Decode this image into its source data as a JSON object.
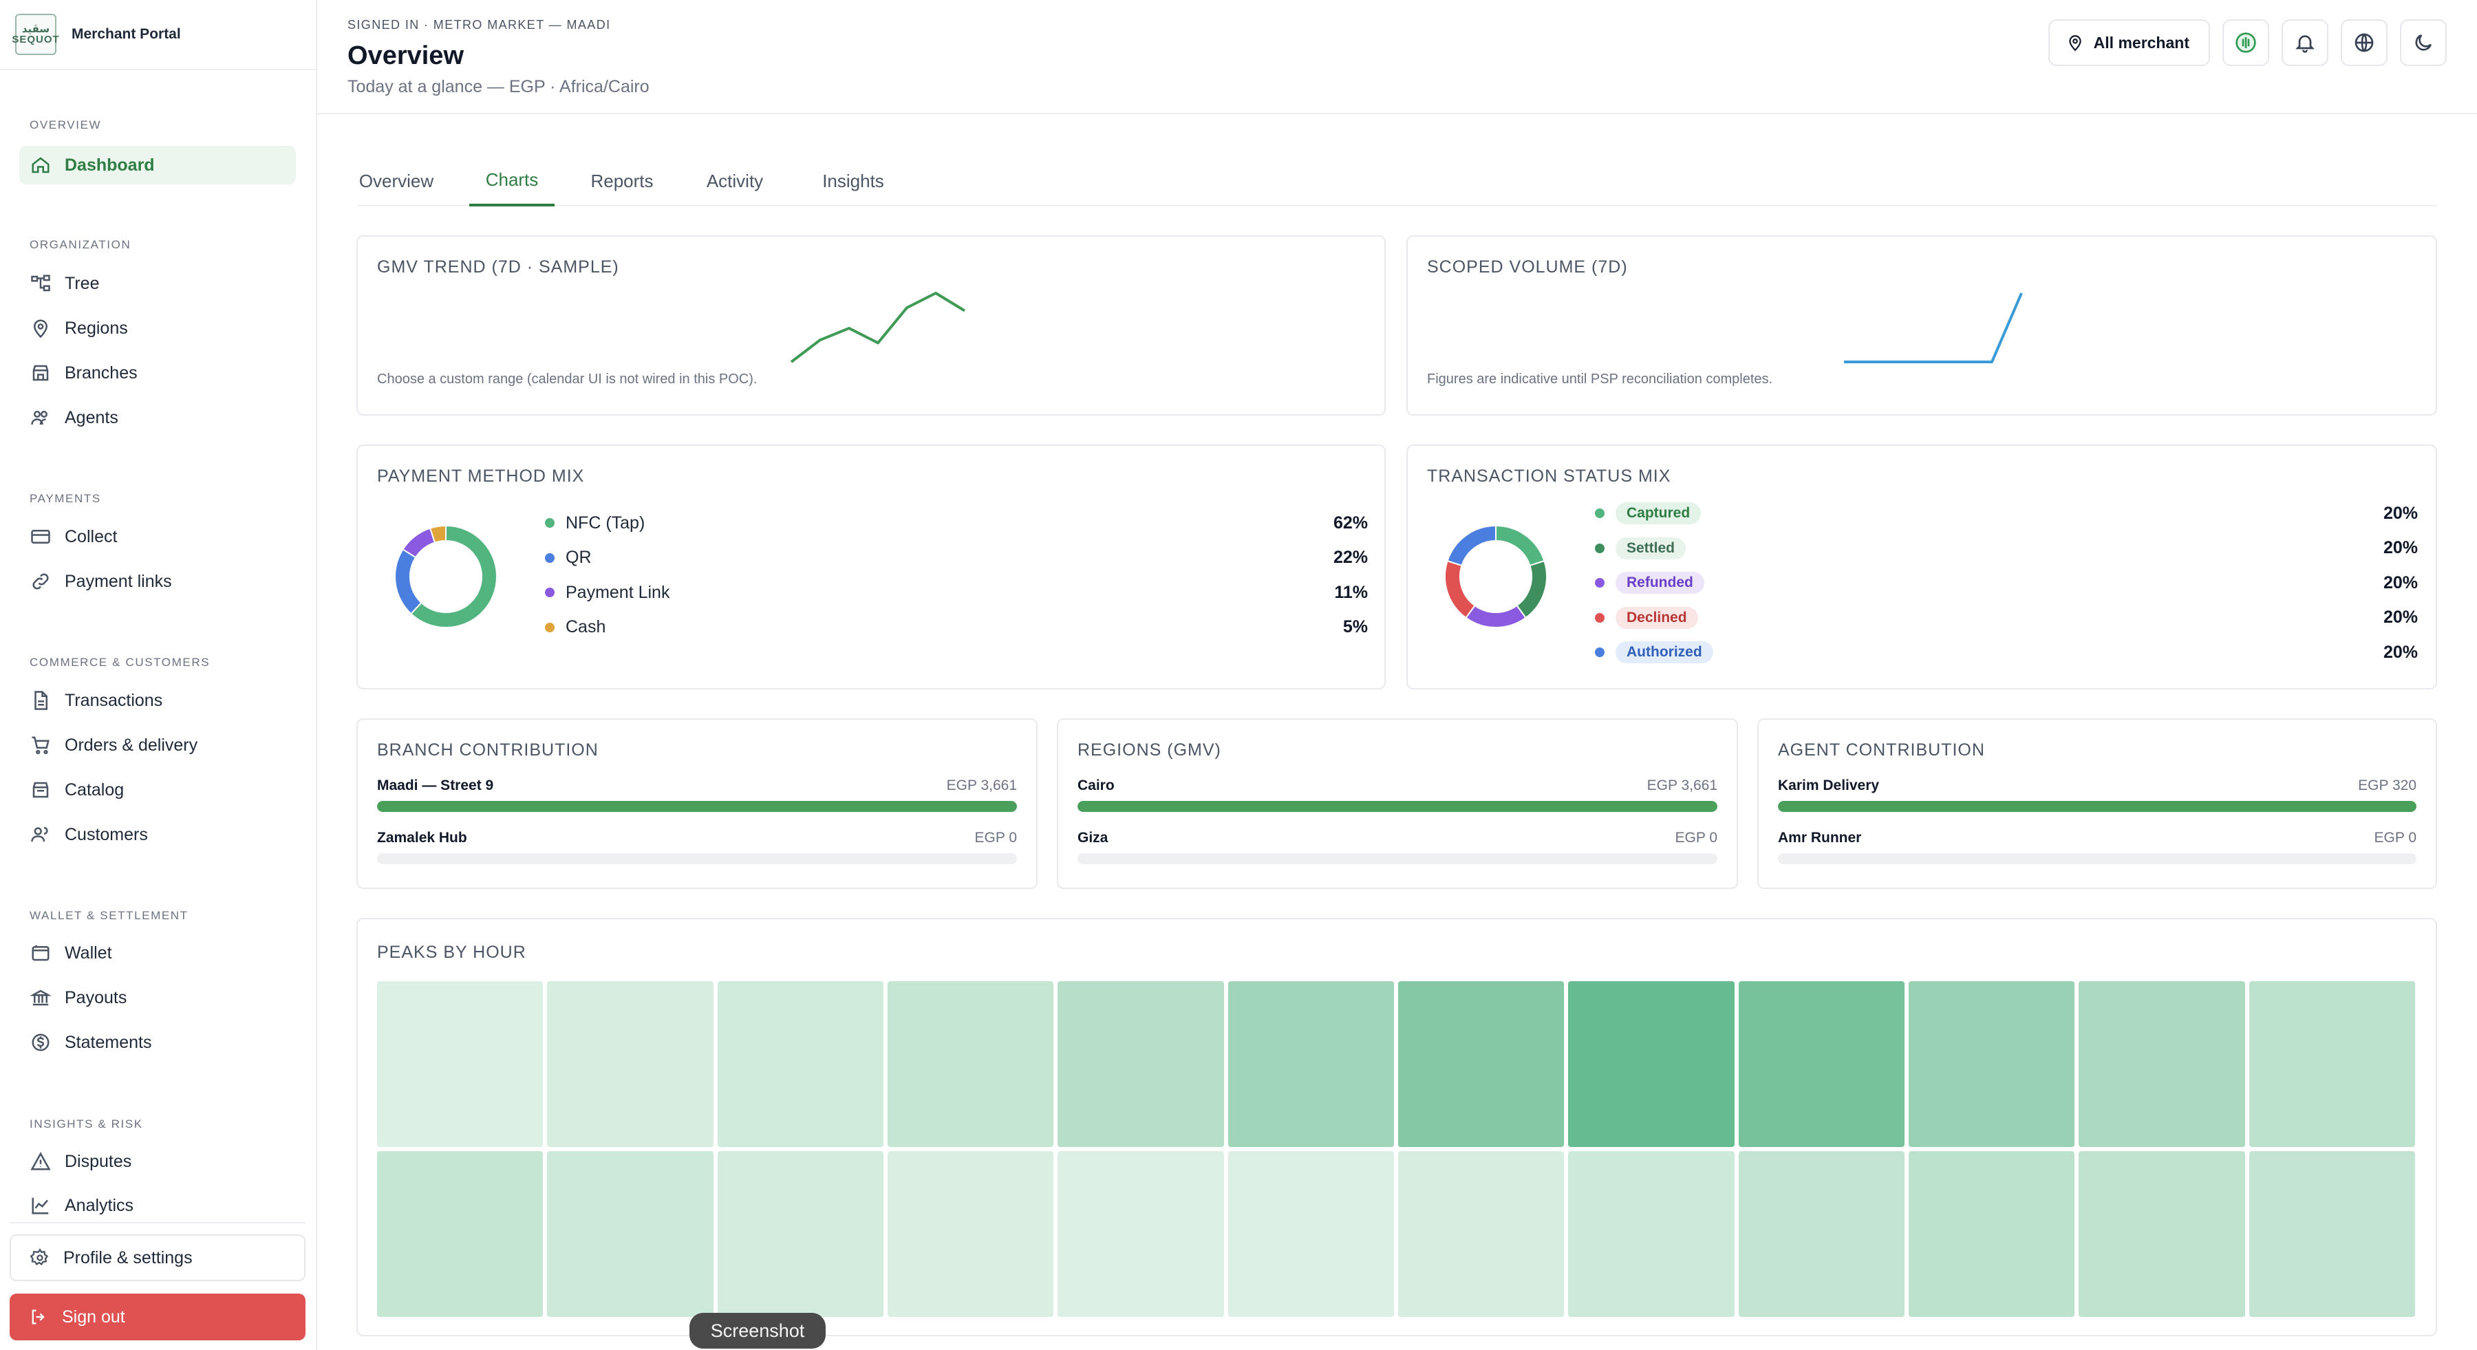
{
  "brand": {
    "logo_line1": "سڨيد",
    "logo_line2": "SEQUOT",
    "name": "Merchant Portal"
  },
  "sidebar": {
    "groups": [
      {
        "title": "OVERVIEW",
        "items": [
          {
            "label": "Dashboard",
            "icon": "home-icon",
            "active": true
          }
        ]
      },
      {
        "title": "ORGANIZATION",
        "items": [
          {
            "label": "Tree",
            "icon": "tree-icon"
          },
          {
            "label": "Regions",
            "icon": "map-pin-icon"
          },
          {
            "label": "Branches",
            "icon": "store-icon"
          },
          {
            "label": "Agents",
            "icon": "users-icon"
          }
        ]
      },
      {
        "title": "PAYMENTS",
        "items": [
          {
            "label": "Collect",
            "icon": "card-icon"
          },
          {
            "label": "Payment links",
            "icon": "link-icon"
          }
        ]
      },
      {
        "title": "COMMERCE & CUSTOMERS",
        "items": [
          {
            "label": "Transactions",
            "icon": "file-icon"
          },
          {
            "label": "Orders & delivery",
            "icon": "cart-icon"
          },
          {
            "label": "Catalog",
            "icon": "catalog-icon"
          },
          {
            "label": "Customers",
            "icon": "customers-icon"
          }
        ]
      },
      {
        "title": "WALLET & SETTLEMENT",
        "items": [
          {
            "label": "Wallet",
            "icon": "wallet-icon"
          },
          {
            "label": "Payouts",
            "icon": "bank-icon"
          },
          {
            "label": "Statements",
            "icon": "dollar-circle-icon"
          }
        ]
      },
      {
        "title": "INSIGHTS & RISK",
        "items": [
          {
            "label": "Disputes",
            "icon": "warning-icon"
          },
          {
            "label": "Analytics",
            "icon": "chart-line-icon"
          }
        ]
      }
    ],
    "profile_label": "Profile & settings",
    "signout_label": "Sign out"
  },
  "header": {
    "signed_in": "SIGNED IN · METRO MARKET — MAADI",
    "title": "Overview",
    "subtitle": "Today at a glance — EGP · Africa/Cairo",
    "merchant_label": "All merchant"
  },
  "tabs": [
    "Overview",
    "Charts",
    "Reports",
    "Activity",
    "Insights"
  ],
  "active_tab": "Charts",
  "gmv_trend": {
    "title": "GMV TREND (7D · SAMPLE)",
    "note": "Choose a custom range (calendar UI is not wired in this POC)."
  },
  "scoped_volume": {
    "title": "SCOPED VOLUME (7D)",
    "note": "Figures are indicative until PSP reconciliation completes."
  },
  "payment_mix": {
    "title": "PAYMENT METHOD MIX",
    "items": [
      {
        "label": "NFC (Tap)",
        "pct": "62%",
        "color": "#52b47e"
      },
      {
        "label": "QR",
        "pct": "22%",
        "color": "#4a7fe0"
      },
      {
        "label": "Payment Link",
        "pct": "11%",
        "color": "#8a5be0"
      },
      {
        "label": "Cash",
        "pct": "5%",
        "color": "#e0a53a"
      }
    ]
  },
  "status_mix": {
    "title": "TRANSACTION STATUS MIX",
    "items": [
      {
        "label": "Captured",
        "pct": "20%",
        "color": "#52b47e",
        "badge_bg": "#e3f3e8",
        "badge_fg": "#2f7d44"
      },
      {
        "label": "Settled",
        "pct": "20%",
        "color": "#3f8f5e",
        "badge_bg": "#e8f3ec",
        "badge_fg": "#3f6e55"
      },
      {
        "label": "Refunded",
        "pct": "20%",
        "color": "#8a5be0",
        "badge_bg": "#ede6fb",
        "badge_fg": "#6a3fc7"
      },
      {
        "label": "Declined",
        "pct": "20%",
        "color": "#e05252",
        "badge_bg": "#fbe6e6",
        "badge_fg": "#b93636"
      },
      {
        "label": "Authorized",
        "pct": "20%",
        "color": "#4a7fe0",
        "badge_bg": "#e3ecfb",
        "badge_fg": "#2f5fb9"
      }
    ]
  },
  "branch_contribution": {
    "title": "BRANCH CONTRIBUTION",
    "rows": [
      {
        "label": "Maadi — Street 9",
        "value": "EGP 3,661",
        "fraction": 1.0
      },
      {
        "label": "Zamalek Hub",
        "value": "EGP 0",
        "fraction": 0.0
      }
    ]
  },
  "regions_gmv": {
    "title": "REGIONS (GMV)",
    "rows": [
      {
        "label": "Cairo",
        "value": "EGP 3,661",
        "fraction": 1.0
      },
      {
        "label": "Giza",
        "value": "EGP 0",
        "fraction": 0.0
      }
    ]
  },
  "agent_contribution": {
    "title": "AGENT CONTRIBUTION",
    "rows": [
      {
        "label": "Karim Delivery",
        "value": "EGP 320",
        "fraction": 1.0
      },
      {
        "label": "Amr Runner",
        "value": "EGP 0",
        "fraction": 0.0
      }
    ]
  },
  "peaks": {
    "title": "PEAKS BY HOUR",
    "rows": [
      [
        0.08,
        0.12,
        0.16,
        0.22,
        0.32,
        0.45,
        0.62,
        0.8,
        0.7,
        0.5,
        0.38,
        0.28
      ],
      [
        0.22,
        0.18,
        0.14,
        0.1,
        0.08,
        0.08,
        0.12,
        0.18,
        0.24,
        0.28,
        0.26,
        0.24
      ]
    ]
  },
  "overlay": {
    "screenshot_label": "Screenshot"
  },
  "chart_data": [
    {
      "type": "line",
      "title": "GMV TREND (7D · SAMPLE)",
      "x": [
        1,
        2,
        3,
        4,
        5,
        6,
        7
      ],
      "values": [
        5,
        20,
        28,
        18,
        42,
        52,
        40
      ]
    },
    {
      "type": "line",
      "title": "SCOPED VOLUME (7D)",
      "x": [
        1,
        2,
        3,
        4,
        5,
        6,
        7
      ],
      "values": [
        0,
        0,
        0,
        0,
        0,
        0,
        100
      ]
    },
    {
      "type": "pie",
      "title": "PAYMENT METHOD MIX",
      "categories": [
        "NFC (Tap)",
        "QR",
        "Payment Link",
        "Cash"
      ],
      "values": [
        62,
        22,
        11,
        5
      ]
    },
    {
      "type": "pie",
      "title": "TRANSACTION STATUS MIX",
      "categories": [
        "Captured",
        "Settled",
        "Refunded",
        "Declined",
        "Authorized"
      ],
      "values": [
        20,
        20,
        20,
        20,
        20
      ]
    },
    {
      "type": "heatmap",
      "title": "PEAKS BY HOUR",
      "values": [
        [
          0.08,
          0.12,
          0.16,
          0.22,
          0.32,
          0.45,
          0.62,
          0.8,
          0.7,
          0.5,
          0.38,
          0.28
        ],
        [
          0.22,
          0.18,
          0.14,
          0.1,
          0.08,
          0.08,
          0.12,
          0.18,
          0.24,
          0.28,
          0.26,
          0.24
        ]
      ]
    }
  ]
}
